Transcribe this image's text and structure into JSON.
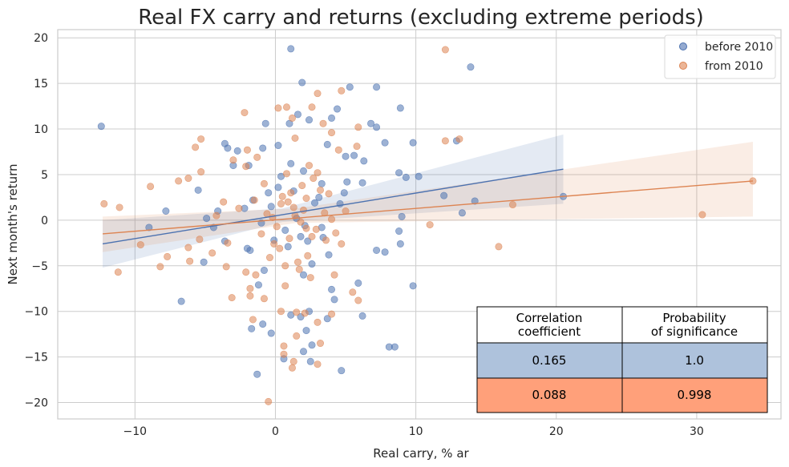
{
  "chart_data": {
    "type": "scatter",
    "title": "Real FX carry and returns (excluding extreme periods)",
    "xlabel": "Real carry, % ar",
    "ylabel": "Next month's return",
    "xlim": [
      -15.5,
      36.0
    ],
    "ylim": [
      -21.8,
      20.9
    ],
    "xticks": [
      -10,
      0,
      10,
      20,
      30
    ],
    "xtick_labels": [
      "−10",
      "0",
      "10",
      "20",
      "30"
    ],
    "yticks": [
      -20,
      -15,
      -10,
      -5,
      0,
      5,
      10,
      15,
      20
    ],
    "ytick_labels": [
      "−20",
      "−15",
      "−10",
      "−5",
      "0",
      "5",
      "10",
      "15",
      "20"
    ],
    "grid": true,
    "legend": "top-right",
    "series": [
      {
        "name": "before 2010",
        "color": "#4c72b0",
        "regression": {
          "x": [
            -12.3,
            20.5
          ],
          "y": [
            -2.6,
            5.6
          ]
        },
        "ci_band": {
          "x": [
            -12.3,
            0.5,
            20.5
          ],
          "lower": [
            -5.2,
            -0.2,
            1.8
          ],
          "upper": [
            0.0,
            1.3,
            9.4
          ]
        },
        "points": [
          [
            -12.4,
            10.3
          ],
          [
            1.1,
            18.8
          ],
          [
            1.9,
            15.1
          ],
          [
            13.9,
            16.8
          ],
          [
            7.2,
            14.6
          ],
          [
            5.3,
            14.6
          ],
          [
            8.9,
            12.3
          ],
          [
            4.0,
            11.2
          ],
          [
            4.4,
            12.2
          ],
          [
            2.4,
            11.0
          ],
          [
            1.0,
            10.6
          ],
          [
            1.6,
            11.6
          ],
          [
            -0.7,
            10.6
          ],
          [
            6.8,
            10.6
          ],
          [
            7.2,
            10.2
          ],
          [
            7.8,
            8.5
          ],
          [
            9.8,
            8.5
          ],
          [
            12.9,
            8.7
          ],
          [
            -3.6,
            8.4
          ],
          [
            -3.4,
            7.9
          ],
          [
            3.7,
            8.3
          ],
          [
            -2.7,
            7.6
          ],
          [
            5.0,
            7.0
          ],
          [
            -3.0,
            6.0
          ],
          [
            -1.9,
            6.0
          ],
          [
            -0.9,
            7.9
          ],
          [
            0.2,
            8.2
          ],
          [
            5.6,
            7.1
          ],
          [
            6.3,
            6.5
          ],
          [
            8.8,
            5.2
          ],
          [
            9.3,
            4.7
          ],
          [
            10.2,
            4.8
          ],
          [
            -5.5,
            3.3
          ],
          [
            -7.8,
            1.0
          ],
          [
            -4.1,
            1.0
          ],
          [
            -2.2,
            1.3
          ],
          [
            -1.6,
            2.2
          ],
          [
            3.3,
            4.0
          ],
          [
            4.9,
            3.0
          ],
          [
            6.2,
            4.1
          ],
          [
            12.0,
            2.7
          ],
          [
            13.3,
            0.8
          ],
          [
            14.2,
            2.1
          ],
          [
            20.5,
            2.6
          ],
          [
            -9.0,
            -0.8
          ],
          [
            -4.9,
            0.2
          ],
          [
            -4.4,
            -0.8
          ],
          [
            -3.6,
            -2.3
          ],
          [
            -2.0,
            -3.1
          ],
          [
            -1.0,
            -0.3
          ],
          [
            2.3,
            -2.3
          ],
          [
            3.3,
            -0.8
          ],
          [
            7.2,
            -3.3
          ],
          [
            8.8,
            -1.2
          ],
          [
            9.0,
            0.4
          ],
          [
            9.8,
            -7.2
          ],
          [
            7.8,
            -3.5
          ],
          [
            8.9,
            -2.6
          ],
          [
            -6.7,
            -8.9
          ],
          [
            -5.1,
            -4.6
          ],
          [
            -1.8,
            -3.3
          ],
          [
            -0.8,
            -5.5
          ],
          [
            -1.2,
            -7.1
          ],
          [
            2.0,
            -6.0
          ],
          [
            4.0,
            -7.6
          ],
          [
            4.2,
            -8.7
          ],
          [
            5.9,
            -6.9
          ],
          [
            -0.9,
            -11.4
          ],
          [
            -1.7,
            -11.9
          ],
          [
            -0.3,
            -12.4
          ],
          [
            1.1,
            -10.4
          ],
          [
            1.8,
            -10.6
          ],
          [
            2.2,
            -12.1
          ],
          [
            2.4,
            -10.0
          ],
          [
            3.7,
            -10.8
          ],
          [
            6.2,
            -10.5
          ],
          [
            8.1,
            -13.9
          ],
          [
            8.5,
            -13.9
          ],
          [
            2.0,
            -14.4
          ],
          [
            2.6,
            -13.7
          ],
          [
            0.6,
            -15.2
          ],
          [
            4.7,
            -16.5
          ],
          [
            -1.3,
            -16.9
          ],
          [
            2.5,
            -15.5
          ],
          [
            0.4,
            4.8
          ],
          [
            1.3,
            3.2
          ],
          [
            2.8,
            1.9
          ],
          [
            0.7,
            -1.1
          ],
          [
            1.5,
            0.2
          ],
          [
            3.1,
            2.5
          ],
          [
            1.8,
            -1.8
          ],
          [
            -0.5,
            3.0
          ],
          [
            2.0,
            5.4
          ],
          [
            3.8,
            -3.8
          ],
          [
            0.9,
            -2.9
          ],
          [
            -0.3,
            1.5
          ],
          [
            2.6,
            -4.8
          ],
          [
            4.6,
            1.8
          ],
          [
            1.1,
            6.2
          ],
          [
            -0.1,
            -2.2
          ],
          [
            5.1,
            4.2
          ],
          [
            3.4,
            -1.9
          ],
          [
            0.2,
            3.6
          ],
          [
            2.1,
            -0.6
          ]
        ]
      },
      {
        "name": "from 2010",
        "color": "#dd8452",
        "regression": {
          "x": [
            -12.3,
            34.0
          ],
          "y": [
            -1.5,
            4.3
          ]
        },
        "ci_band": {
          "x": [
            -12.3,
            1.5,
            34.0
          ],
          "lower": [
            -3.5,
            -0.3,
            0.4
          ],
          "upper": [
            0.4,
            1.3,
            8.6
          ]
        },
        "points": [
          [
            12.1,
            18.7
          ],
          [
            4.7,
            14.2
          ],
          [
            3.0,
            13.9
          ],
          [
            2.6,
            12.4
          ],
          [
            0.2,
            12.3
          ],
          [
            0.8,
            12.4
          ],
          [
            -2.2,
            11.8
          ],
          [
            1.2,
            11.2
          ],
          [
            3.4,
            10.6
          ],
          [
            5.9,
            10.2
          ],
          [
            4.0,
            9.6
          ],
          [
            1.4,
            9.0
          ],
          [
            -5.3,
            8.9
          ],
          [
            -5.7,
            8.0
          ],
          [
            -2.0,
            7.7
          ],
          [
            4.5,
            7.7
          ],
          [
            5.8,
            8.1
          ],
          [
            12.1,
            8.7
          ],
          [
            13.1,
            8.9
          ],
          [
            -3.0,
            6.6
          ],
          [
            -1.3,
            6.9
          ],
          [
            -2.1,
            5.9
          ],
          [
            -5.3,
            5.3
          ],
          [
            -6.2,
            4.6
          ],
          [
            -6.9,
            4.3
          ],
          [
            -8.9,
            3.7
          ],
          [
            -11.1,
            1.4
          ],
          [
            -12.2,
            1.8
          ],
          [
            -3.7,
            2.0
          ],
          [
            -4.2,
            0.5
          ],
          [
            -2.6,
            1.3
          ],
          [
            -0.6,
            0.7
          ],
          [
            11.0,
            -0.5
          ],
          [
            16.9,
            1.7
          ],
          [
            30.4,
            0.6
          ],
          [
            34.0,
            4.3
          ],
          [
            -9.6,
            -2.7
          ],
          [
            -7.7,
            -4.0
          ],
          [
            -6.2,
            -3.0
          ],
          [
            -5.4,
            -2.1
          ],
          [
            -4.5,
            -3.6
          ],
          [
            -3.4,
            -2.5
          ],
          [
            -11.2,
            -5.7
          ],
          [
            -8.2,
            -5.1
          ],
          [
            -6.1,
            -4.5
          ],
          [
            -3.5,
            -5.1
          ],
          [
            -2.1,
            -5.7
          ],
          [
            -1.4,
            -6.0
          ],
          [
            -1.8,
            -7.5
          ],
          [
            -3.1,
            -8.5
          ],
          [
            -1.8,
            -8.3
          ],
          [
            -0.8,
            -8.6
          ],
          [
            0.7,
            -7.2
          ],
          [
            2.5,
            -6.3
          ],
          [
            4.2,
            -6.0
          ],
          [
            5.5,
            -7.9
          ],
          [
            5.9,
            -8.8
          ],
          [
            15.9,
            -2.9
          ],
          [
            -1.6,
            -10.9
          ],
          [
            0.4,
            -10.0
          ],
          [
            1.5,
            -10.1
          ],
          [
            2.1,
            -10.2
          ],
          [
            3.0,
            -11.2
          ],
          [
            4.0,
            -10.3
          ],
          [
            0.6,
            -13.8
          ],
          [
            1.5,
            -12.7
          ],
          [
            3.2,
            -13.5
          ],
          [
            0.6,
            -14.7
          ],
          [
            1.3,
            -15.5
          ],
          [
            3.0,
            -15.8
          ],
          [
            1.2,
            -16.2
          ],
          [
            -0.5,
            -19.9
          ],
          [
            1.3,
            1.4
          ],
          [
            2.2,
            -0.9
          ],
          [
            0.5,
            2.6
          ],
          [
            3.5,
            0.8
          ],
          [
            -1.0,
            -1.5
          ],
          [
            1.9,
            3.8
          ],
          [
            0.3,
            -3.1
          ],
          [
            2.7,
            4.6
          ],
          [
            1.0,
            -2.0
          ],
          [
            4.3,
            -1.4
          ],
          [
            -0.2,
            0.3
          ],
          [
            2.3,
            -3.9
          ],
          [
            3.8,
            2.9
          ],
          [
            0.8,
            5.1
          ],
          [
            1.6,
            -4.6
          ],
          [
            -1.5,
            2.2
          ],
          [
            2.9,
            -1.0
          ],
          [
            1.4,
            0.5
          ],
          [
            0.1,
            -0.7
          ],
          [
            3.2,
            3.3
          ],
          [
            2.0,
            1.1
          ],
          [
            -0.8,
            4.0
          ],
          [
            4.7,
            -2.6
          ],
          [
            1.7,
            -5.4
          ],
          [
            0.9,
            2.0
          ],
          [
            3.6,
            -2.2
          ],
          [
            2.4,
            6.0
          ],
          [
            -0.4,
            -4.1
          ],
          [
            1.1,
            3.0
          ],
          [
            2.6,
            -1.8
          ],
          [
            0.4,
            1.8
          ],
          [
            5.0,
            1.0
          ],
          [
            1.8,
            -0.2
          ],
          [
            3.0,
            5.2
          ],
          [
            -0.1,
            -2.6
          ],
          [
            2.2,
            2.4
          ],
          [
            0.7,
            -5.0
          ],
          [
            4.0,
            0.1
          ]
        ]
      }
    ],
    "table": {
      "headers": [
        "Correlation\ncoefficient",
        "Probability\nof significance"
      ],
      "rows": [
        {
          "values": [
            "0.165",
            "1.0"
          ],
          "color": "#aec2dc"
        },
        {
          "values": [
            "0.088",
            "0.998"
          ],
          "color": "#ffa07a"
        }
      ]
    }
  }
}
